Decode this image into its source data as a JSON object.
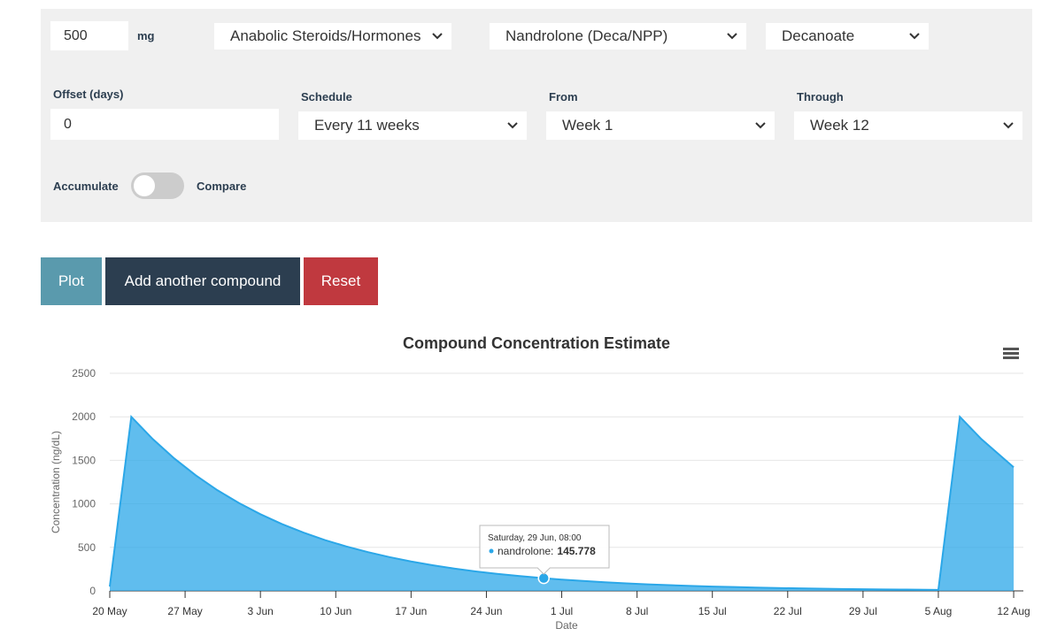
{
  "form": {
    "amount": "500",
    "unit": "mg",
    "category": "Anabolic Steroids/Hormones",
    "compound": "Nandrolone (Deca/NPP)",
    "ester": "Decanoate",
    "offset_label": "Offset (days)",
    "offset": "0",
    "schedule_label": "Schedule",
    "schedule": "Every 11 weeks",
    "from_label": "From",
    "from": "Week 1",
    "through_label": "Through",
    "through": "Week 12",
    "accumulate": "Accumulate",
    "compare": "Compare"
  },
  "buttons": [
    "Plot",
    "Add another compound",
    "Reset"
  ],
  "chart_data": {
    "type": "area",
    "title": "Compound Concentration Estimate",
    "x_label": "Date",
    "y_label": "Concentration (ng/dL)",
    "series": [
      {
        "name": "nandrolone",
        "color": "#2ba7e8",
        "x": [
          0,
          2,
          4,
          6,
          8,
          10,
          12,
          14,
          16,
          18,
          20,
          22,
          24,
          26,
          28,
          30,
          32,
          34,
          36,
          38,
          40.33,
          42,
          44,
          46,
          48,
          50,
          52,
          54,
          56,
          58,
          60,
          62,
          64,
          66,
          68,
          70,
          72,
          74,
          77,
          79,
          81,
          84
        ],
        "values": [
          50,
          2000,
          1744,
          1521,
          1327,
          1157,
          1010,
          881,
          768,
          670,
          584,
          510,
          445,
          388,
          338,
          295,
          257,
          224,
          196,
          171,
          145.778,
          130,
          114,
          99,
          86,
          75,
          66,
          57,
          50,
          44,
          38,
          33,
          29,
          25,
          22,
          19,
          17,
          15,
          12,
          2000,
          1744,
          1420
        ]
      }
    ],
    "xlim": [
      0,
      84.9
    ],
    "ylim": [
      0,
      2500
    ],
    "yticks": [
      0,
      500,
      1000,
      1500,
      2000,
      2500
    ],
    "grid": true,
    "xticks": [
      {
        "value": 0,
        "label": "20 May"
      },
      {
        "value": 7,
        "label": "27 May"
      },
      {
        "value": 14,
        "label": "3 Jun"
      },
      {
        "value": 21,
        "label": "10 Jun"
      },
      {
        "value": 28,
        "label": "17 Jun"
      },
      {
        "value": 35,
        "label": "24 Jun"
      },
      {
        "value": 42,
        "label": "1 Jul"
      },
      {
        "value": 49,
        "label": "8 Jul"
      },
      {
        "value": 56,
        "label": "15 Jul"
      },
      {
        "value": 63,
        "label": "22 Jul"
      },
      {
        "value": 70,
        "label": "29 Jul"
      },
      {
        "value": 77,
        "label": "5 Aug"
      },
      {
        "value": 84,
        "label": "12 Aug"
      }
    ],
    "tooltip": {
      "title": "Saturday, 29 Jun, 08:00",
      "label": "nandrolone:",
      "value": 145.778,
      "x": 40.33
    }
  }
}
